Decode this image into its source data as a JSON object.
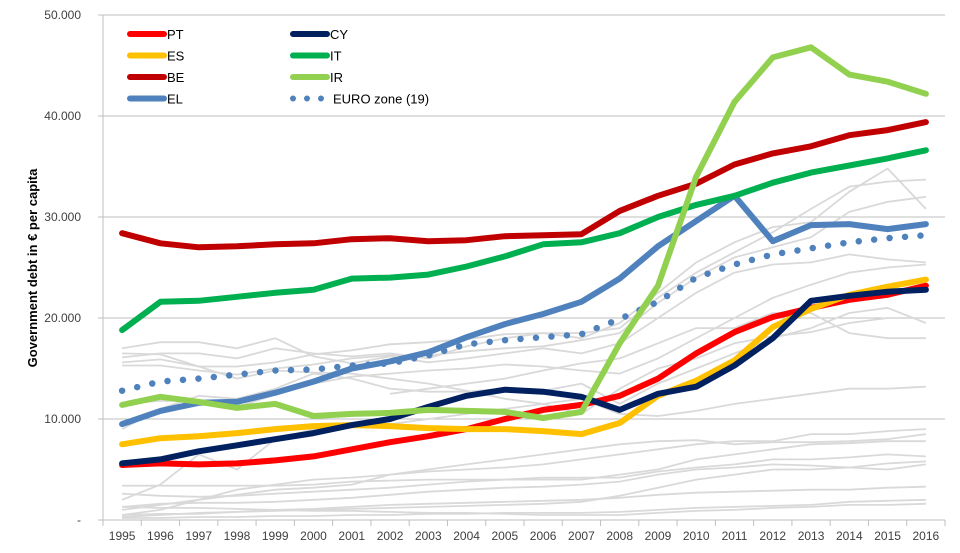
{
  "chart_data": {
    "type": "line",
    "title": "",
    "xlabel": "",
    "ylabel": "Government debt in € per capita",
    "ylim": [
      0,
      50000
    ],
    "y_ticks": [
      "-",
      "10.000",
      "20.000",
      "30.000",
      "40.000",
      "50.000"
    ],
    "y_tick_values": [
      0,
      10000,
      20000,
      30000,
      40000,
      50000
    ],
    "grid": "horizontal",
    "legend_position": "top-left",
    "x": [
      "1995",
      "1996",
      "1997",
      "1998",
      "1999",
      "2000",
      "2001",
      "2002",
      "2003",
      "2004",
      "2005",
      "2006",
      "2007",
      "2008",
      "2009",
      "2010",
      "2011",
      "2012",
      "2013",
      "2014",
      "2015",
      "2016"
    ],
    "series": [
      {
        "name": "PT",
        "color": "#FF0000",
        "style": "solid",
        "values": [
          5450,
          5600,
          5500,
          5600,
          5900,
          6300,
          7000,
          7700,
          8300,
          9000,
          10000,
          10900,
          11400,
          12300,
          14000,
          16500,
          18600,
          20100,
          21000,
          21800,
          22300,
          23200
        ]
      },
      {
        "name": "ES",
        "color": "#FFC000",
        "style": "solid",
        "values": [
          7500,
          8100,
          8300,
          8600,
          9000,
          9300,
          9400,
          9300,
          9100,
          9000,
          9000,
          8800,
          8500,
          9600,
          12300,
          13800,
          15800,
          19100,
          20900,
          22300,
          23100,
          23800
        ]
      },
      {
        "name": "BE",
        "color": "#C00000",
        "style": "solid",
        "values": [
          28400,
          27400,
          27000,
          27100,
          27300,
          27400,
          27800,
          27900,
          27600,
          27700,
          28100,
          28200,
          28300,
          30600,
          32100,
          33300,
          35200,
          36300,
          37000,
          38100,
          38600,
          39400
        ]
      },
      {
        "name": "EL",
        "color": "#4F81BD",
        "style": "solid",
        "values": [
          9500,
          10800,
          11600,
          11700,
          12600,
          13700,
          15000,
          15700,
          16600,
          18100,
          19400,
          20400,
          21600,
          23900,
          27100,
          29600,
          32100,
          27600,
          29200,
          29300,
          28800,
          29300
        ]
      },
      {
        "name": "CY",
        "color": "#002060",
        "style": "solid",
        "values": [
          5600,
          6000,
          6800,
          7400,
          8000,
          8600,
          9400,
          10000,
          11200,
          12300,
          12900,
          12700,
          12200,
          10900,
          12500,
          13200,
          15300,
          18000,
          21700,
          22200,
          22600,
          22800
        ]
      },
      {
        "name": "IT",
        "color": "#00B050",
        "style": "solid",
        "values": [
          18800,
          21600,
          21700,
          22100,
          22500,
          22800,
          23900,
          24000,
          24300,
          25100,
          26100,
          27300,
          27500,
          28400,
          30000,
          31200,
          32100,
          33400,
          34400,
          35100,
          35800,
          36600
        ]
      },
      {
        "name": "IR",
        "color": "#92D050",
        "style": "solid",
        "values": [
          11400,
          12200,
          11700,
          11100,
          11500,
          10300,
          10500,
          10600,
          10900,
          10800,
          10700,
          10100,
          10700,
          17500,
          23200,
          34000,
          41400,
          45800,
          46800,
          44100,
          43400,
          42200
        ]
      },
      {
        "name": "EURO zone (19)",
        "color": "#4F81BD",
        "style": "dotted",
        "values": [
          12800,
          13700,
          14000,
          14400,
          14800,
          14900,
          15300,
          15500,
          16300,
          17400,
          17800,
          18100,
          18400,
          19900,
          21600,
          24000,
          25300,
          26300,
          26900,
          27500,
          27900,
          28200
        ]
      }
    ],
    "background_series_color": "#D9D9D9",
    "background_series": [
      [
        16100,
        16500,
        16500,
        16000,
        17000,
        16500,
        16200,
        16500,
        16000,
        17200,
        18000,
        18500,
        18000,
        19500,
        22500,
        25500,
        27500,
        29000,
        29500,
        32500,
        34800,
        30800
      ],
      [
        15600,
        15900,
        15200,
        15200,
        15600,
        16400,
        16800,
        17400,
        17600,
        17900,
        18400,
        18500,
        18500,
        19000,
        22000,
        24500,
        26500,
        28500,
        30800,
        33000,
        33500,
        33700
      ],
      [
        15300,
        15300,
        14800,
        14400,
        15000,
        15400,
        16000,
        16300,
        16300,
        16700,
        17000,
        17200,
        17800,
        18500,
        21500,
        24000,
        26000,
        27000,
        28000,
        30500,
        31500,
        32000
      ],
      [
        17000,
        17600,
        17600,
        17000,
        18000,
        16200,
        15500,
        16200,
        15600,
        16000,
        16500,
        17000,
        16500,
        17500,
        20000,
        22500,
        24500,
        25300,
        25500,
        26300,
        25800,
        25500
      ],
      [
        11500,
        11800,
        11800,
        11200,
        12400,
        13500,
        14200,
        14500,
        14800,
        15000,
        15400,
        15200,
        14800,
        14500,
        16000,
        18000,
        20000,
        22000,
        23300,
        24500,
        25000,
        25300
      ],
      [
        9000,
        11000,
        12300,
        12000,
        13000,
        14500,
        14000,
        13000,
        12700,
        12700,
        13000,
        12800,
        13500,
        11500,
        13500,
        15000,
        16500,
        18000,
        19000,
        20500,
        21000,
        19500
      ],
      [
        null,
        null,
        null,
        null,
        null,
        null,
        null,
        12500,
        13000,
        13500,
        14000,
        14800,
        15500,
        16000,
        17500,
        19000,
        19000,
        20500,
        20500,
        18500,
        18000,
        18000
      ],
      [
        16500,
        16400,
        15200,
        14000,
        14800,
        14600,
        14500,
        14000,
        13500,
        12800,
        12000,
        11500,
        10500,
        13000,
        15000,
        16000,
        17500,
        18200,
        18600,
        19500,
        20000,
        20000
      ],
      [
        2000,
        3500,
        6500,
        5000,
        8000,
        9000,
        9200,
        9500,
        10000,
        10500,
        11000,
        11500,
        12000,
        10500,
        10300,
        10800,
        11500,
        12000,
        12500,
        13000,
        13000,
        13200
      ],
      [
        1000,
        1500,
        2000,
        2500,
        3000,
        3200,
        3500,
        4500,
        5000,
        5500,
        6000,
        6500,
        7000,
        7500,
        7800,
        7900,
        7500,
        7700,
        7700,
        7800,
        8000,
        8500
      ],
      [
        500,
        1000,
        2000,
        3000,
        3500,
        4000,
        4200,
        4500,
        4800,
        5000,
        5200,
        5500,
        6000,
        6500,
        7000,
        7500,
        7800,
        7800,
        8500,
        8500,
        8800,
        9000
      ],
      [
        3400,
        3400,
        3400,
        3400,
        3400,
        3500,
        3800,
        3900,
        4000,
        4000,
        4000,
        4000,
        4000,
        4500,
        5000,
        6000,
        6500,
        7000,
        7500,
        7600,
        7800,
        7800
      ],
      [
        2600,
        2400,
        2300,
        2400,
        2600,
        2800,
        3000,
        3200,
        3500,
        3800,
        4000,
        4200,
        4200,
        4200,
        4800,
        5200,
        5500,
        6000,
        6000,
        6200,
        6500,
        6300
      ],
      [
        1300,
        1600,
        1700,
        1700,
        1800,
        2000,
        2200,
        2500,
        2800,
        3000,
        3200,
        3300,
        3500,
        3800,
        4500,
        5000,
        5200,
        5500,
        5400,
        5200,
        5000,
        5500
      ],
      [
        300,
        500,
        700,
        800,
        900,
        1000,
        1100,
        1200,
        1300,
        1400,
        1500,
        1600,
        1800,
        2400,
        3200,
        4000,
        4500,
        5000,
        5000,
        5200,
        5600,
        5800
      ],
      [
        500,
        600,
        600,
        800,
        1000,
        1100,
        1300,
        1500,
        1600,
        1700,
        1800,
        1900,
        2000,
        2200,
        2500,
        2700,
        2800,
        2900,
        3000,
        3000,
        3200,
        3300
      ],
      [
        200,
        200,
        300,
        300,
        400,
        400,
        500,
        500,
        600,
        600,
        700,
        700,
        700,
        800,
        1000,
        1200,
        1300,
        1400,
        1500,
        1800,
        1900,
        2000
      ],
      [
        1300,
        1200,
        1200,
        1100,
        1000,
        900,
        900,
        800,
        700,
        700,
        600,
        500,
        500,
        500,
        700,
        900,
        1000,
        1200,
        1300,
        1500,
        1500,
        1600
      ]
    ]
  }
}
